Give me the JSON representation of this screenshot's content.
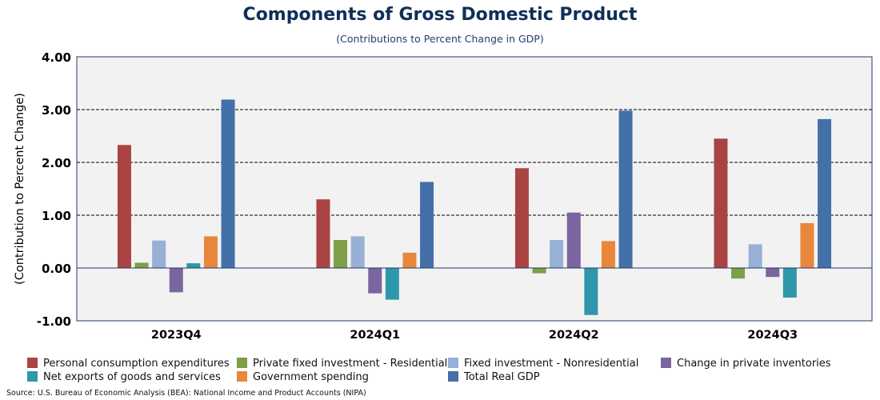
{
  "chart_data": {
    "type": "bar",
    "title": "Components of Gross Domestic Product",
    "subtitle": "(Contributions to Percent Change in GDP)",
    "ylabel": "(Contribution to Percent Change)",
    "xlabel": "",
    "ylim": [
      -1.0,
      4.0
    ],
    "yticks": [
      "4.00",
      "3.00",
      "2.00",
      "1.00",
      "0.00",
      "-1.00"
    ],
    "grid": true,
    "legend_position": "bottom",
    "categories": [
      "2023Q4",
      "2024Q1",
      "2024Q2",
      "2024Q3"
    ],
    "series": [
      {
        "name": "Personal consumption expenditures",
        "color": "#a94442",
        "values": [
          2.33,
          1.3,
          1.89,
          2.45
        ]
      },
      {
        "name": "Private fixed investment - Residential",
        "color": "#7e9e47",
        "values": [
          0.1,
          0.53,
          -0.1,
          -0.2
        ]
      },
      {
        "name": "Fixed investment - Nonresidential",
        "color": "#98b0d6",
        "values": [
          0.52,
          0.6,
          0.53,
          0.45
        ]
      },
      {
        "name": "Change in private inventories",
        "color": "#7b64a0",
        "values": [
          -0.46,
          -0.48,
          1.05,
          -0.17
        ]
      },
      {
        "name": "Net exports of goods and services",
        "color": "#2e97ac",
        "values": [
          0.09,
          -0.6,
          -0.89,
          -0.56
        ]
      },
      {
        "name": "Government spending",
        "color": "#e8873c",
        "values": [
          0.6,
          0.29,
          0.51,
          0.85
        ]
      },
      {
        "name": "Total Real GDP",
        "color": "#4370a8",
        "values": [
          3.19,
          1.63,
          2.98,
          2.82
        ]
      }
    ],
    "plot_background": "#f2f2f2",
    "axis_color": "#1f3864"
  },
  "source": "Source: U.S. Bureau of Economic Analysis (BEA): National Income and Product Accounts (NIPA)"
}
